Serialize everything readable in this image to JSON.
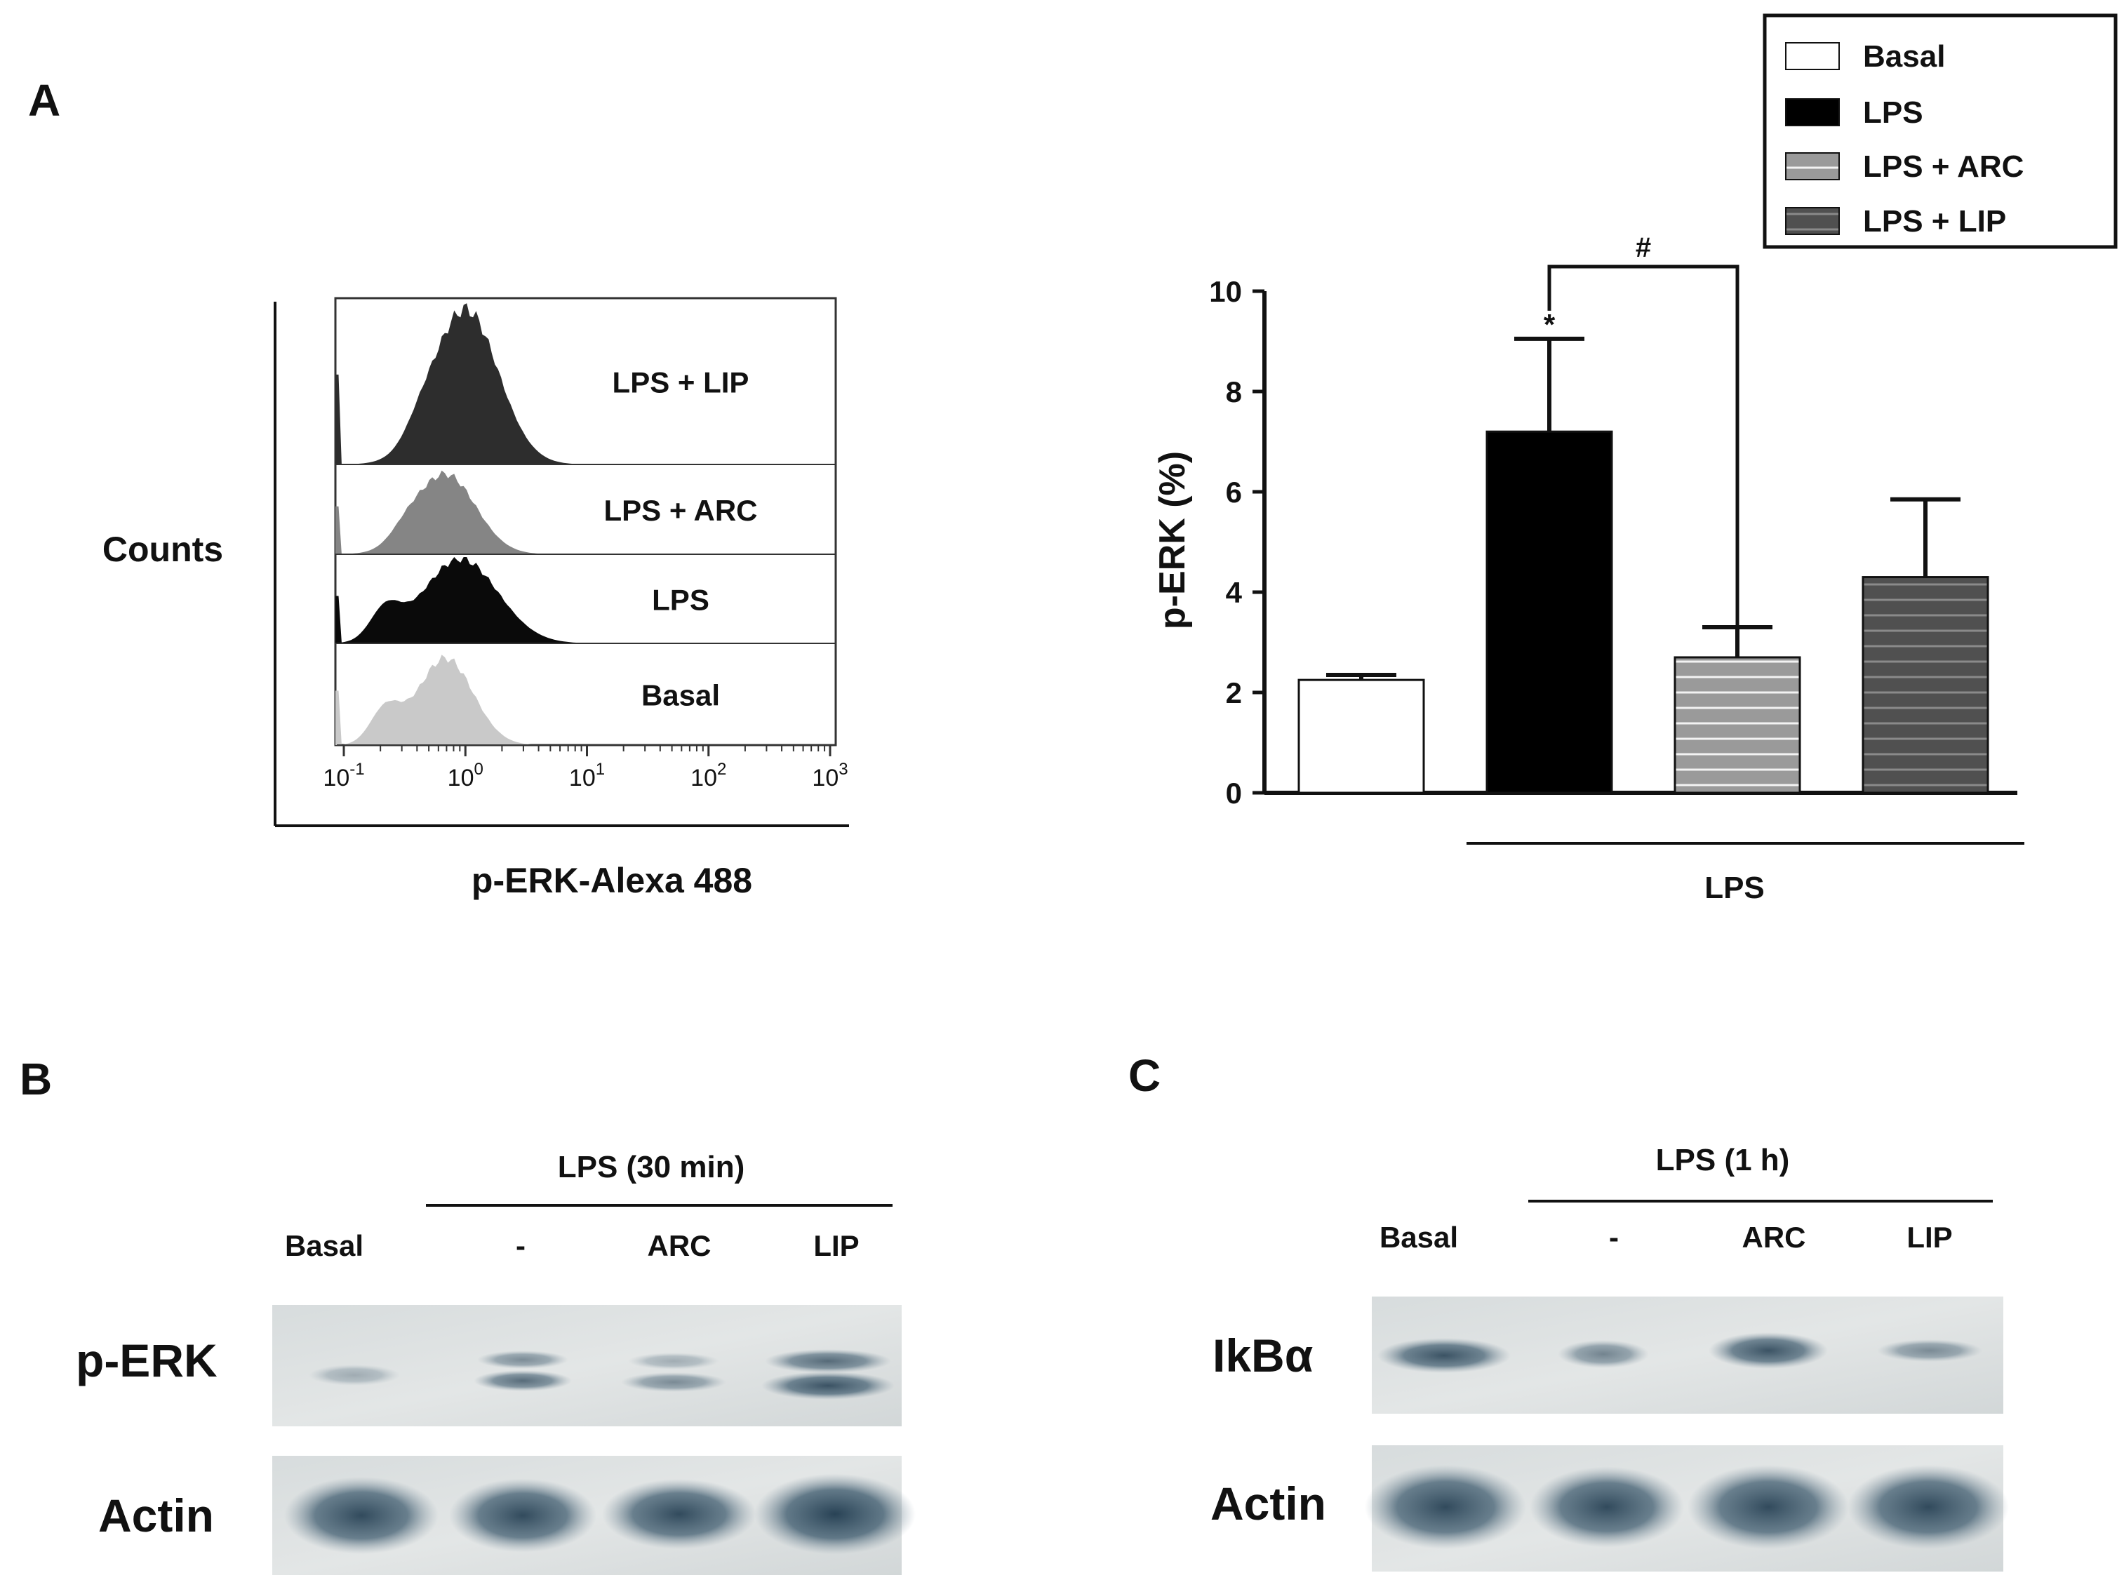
{
  "panels": {
    "a": "A",
    "b": "B",
    "c": "C"
  },
  "histogram": {
    "ylabel": "Counts",
    "xlabel": "p-ERK-Alexa 488",
    "ticks": [
      {
        "base": "10",
        "exp": "-1"
      },
      {
        "base": "10",
        "exp": "0"
      },
      {
        "base": "10",
        "exp": "1"
      },
      {
        "base": "10",
        "exp": "2"
      },
      {
        "base": "10",
        "exp": "3"
      }
    ],
    "tracks": [
      {
        "label": "LPS + LIP",
        "color": "#2d2d2d"
      },
      {
        "label": "LPS + ARC",
        "color": "#858585"
      },
      {
        "label": "LPS",
        "color": "#0a0a0a"
      },
      {
        "label": "Basal",
        "color": "#c9c9c9"
      }
    ]
  },
  "legend": [
    {
      "label": "Basal",
      "color": "#ffffff"
    },
    {
      "label": "LPS",
      "color": "#000000"
    },
    {
      "label": "LPS + ARC",
      "color": "#9a9a9a"
    },
    {
      "label": "LPS + LIP",
      "color": "#505050"
    }
  ],
  "chart_data": {
    "type": "bar",
    "categories": [
      "Basal",
      "LPS",
      "LPS + ARC",
      "LPS + LIP"
    ],
    "values": [
      2.25,
      7.2,
      2.7,
      4.3
    ],
    "errors": [
      0.1,
      1.85,
      0.6,
      1.55
    ],
    "colors": [
      "#ffffff",
      "#000000",
      "#9a9a9a",
      "#505050"
    ],
    "ylabel": "p-ERK  (%)",
    "ylim": [
      0,
      10
    ],
    "yticks": [
      "0",
      "2",
      "4",
      "6",
      "8",
      "10"
    ],
    "group_label": "LPS",
    "significance": {
      "star": "*",
      "hash": "#"
    }
  },
  "blot_b": {
    "header": "LPS (30 min)",
    "lanes": [
      "Basal",
      "-",
      "ARC",
      "LIP"
    ],
    "rows": [
      "p-ERK",
      "Actin"
    ]
  },
  "blot_c": {
    "header": "LPS (1 h)",
    "lanes": [
      "Basal",
      "-",
      "ARC",
      "LIP"
    ],
    "rows": [
      "IkBα",
      "Actin"
    ]
  }
}
